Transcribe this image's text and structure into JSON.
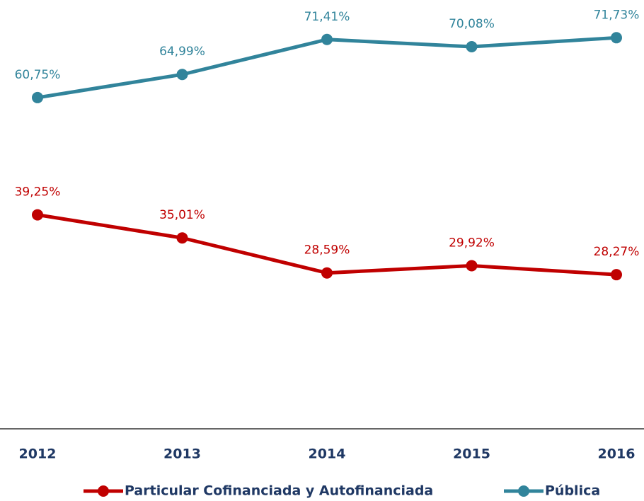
{
  "chart_data": {
    "type": "line",
    "categories": [
      "2012",
      "2013",
      "2014",
      "2015",
      "2016"
    ],
    "series": [
      {
        "name": "Particular Cofinanciada y Autofinanciada",
        "color": "#c00000",
        "values": [
          39.25,
          35.01,
          28.59,
          29.92,
          28.27
        ],
        "value_labels": [
          "39,25%",
          "35,01%",
          "28,59%",
          "29,92%",
          "28,27%"
        ]
      },
      {
        "name": "Pública",
        "color": "#31849b",
        "values": [
          60.75,
          64.99,
          71.41,
          70.08,
          71.73
        ],
        "value_labels": [
          "60,75%",
          "64,99%",
          "71,41%",
          "70,08%",
          "71,73%"
        ]
      }
    ],
    "ylim": [
      0,
      78
    ],
    "legend": "bottom"
  }
}
